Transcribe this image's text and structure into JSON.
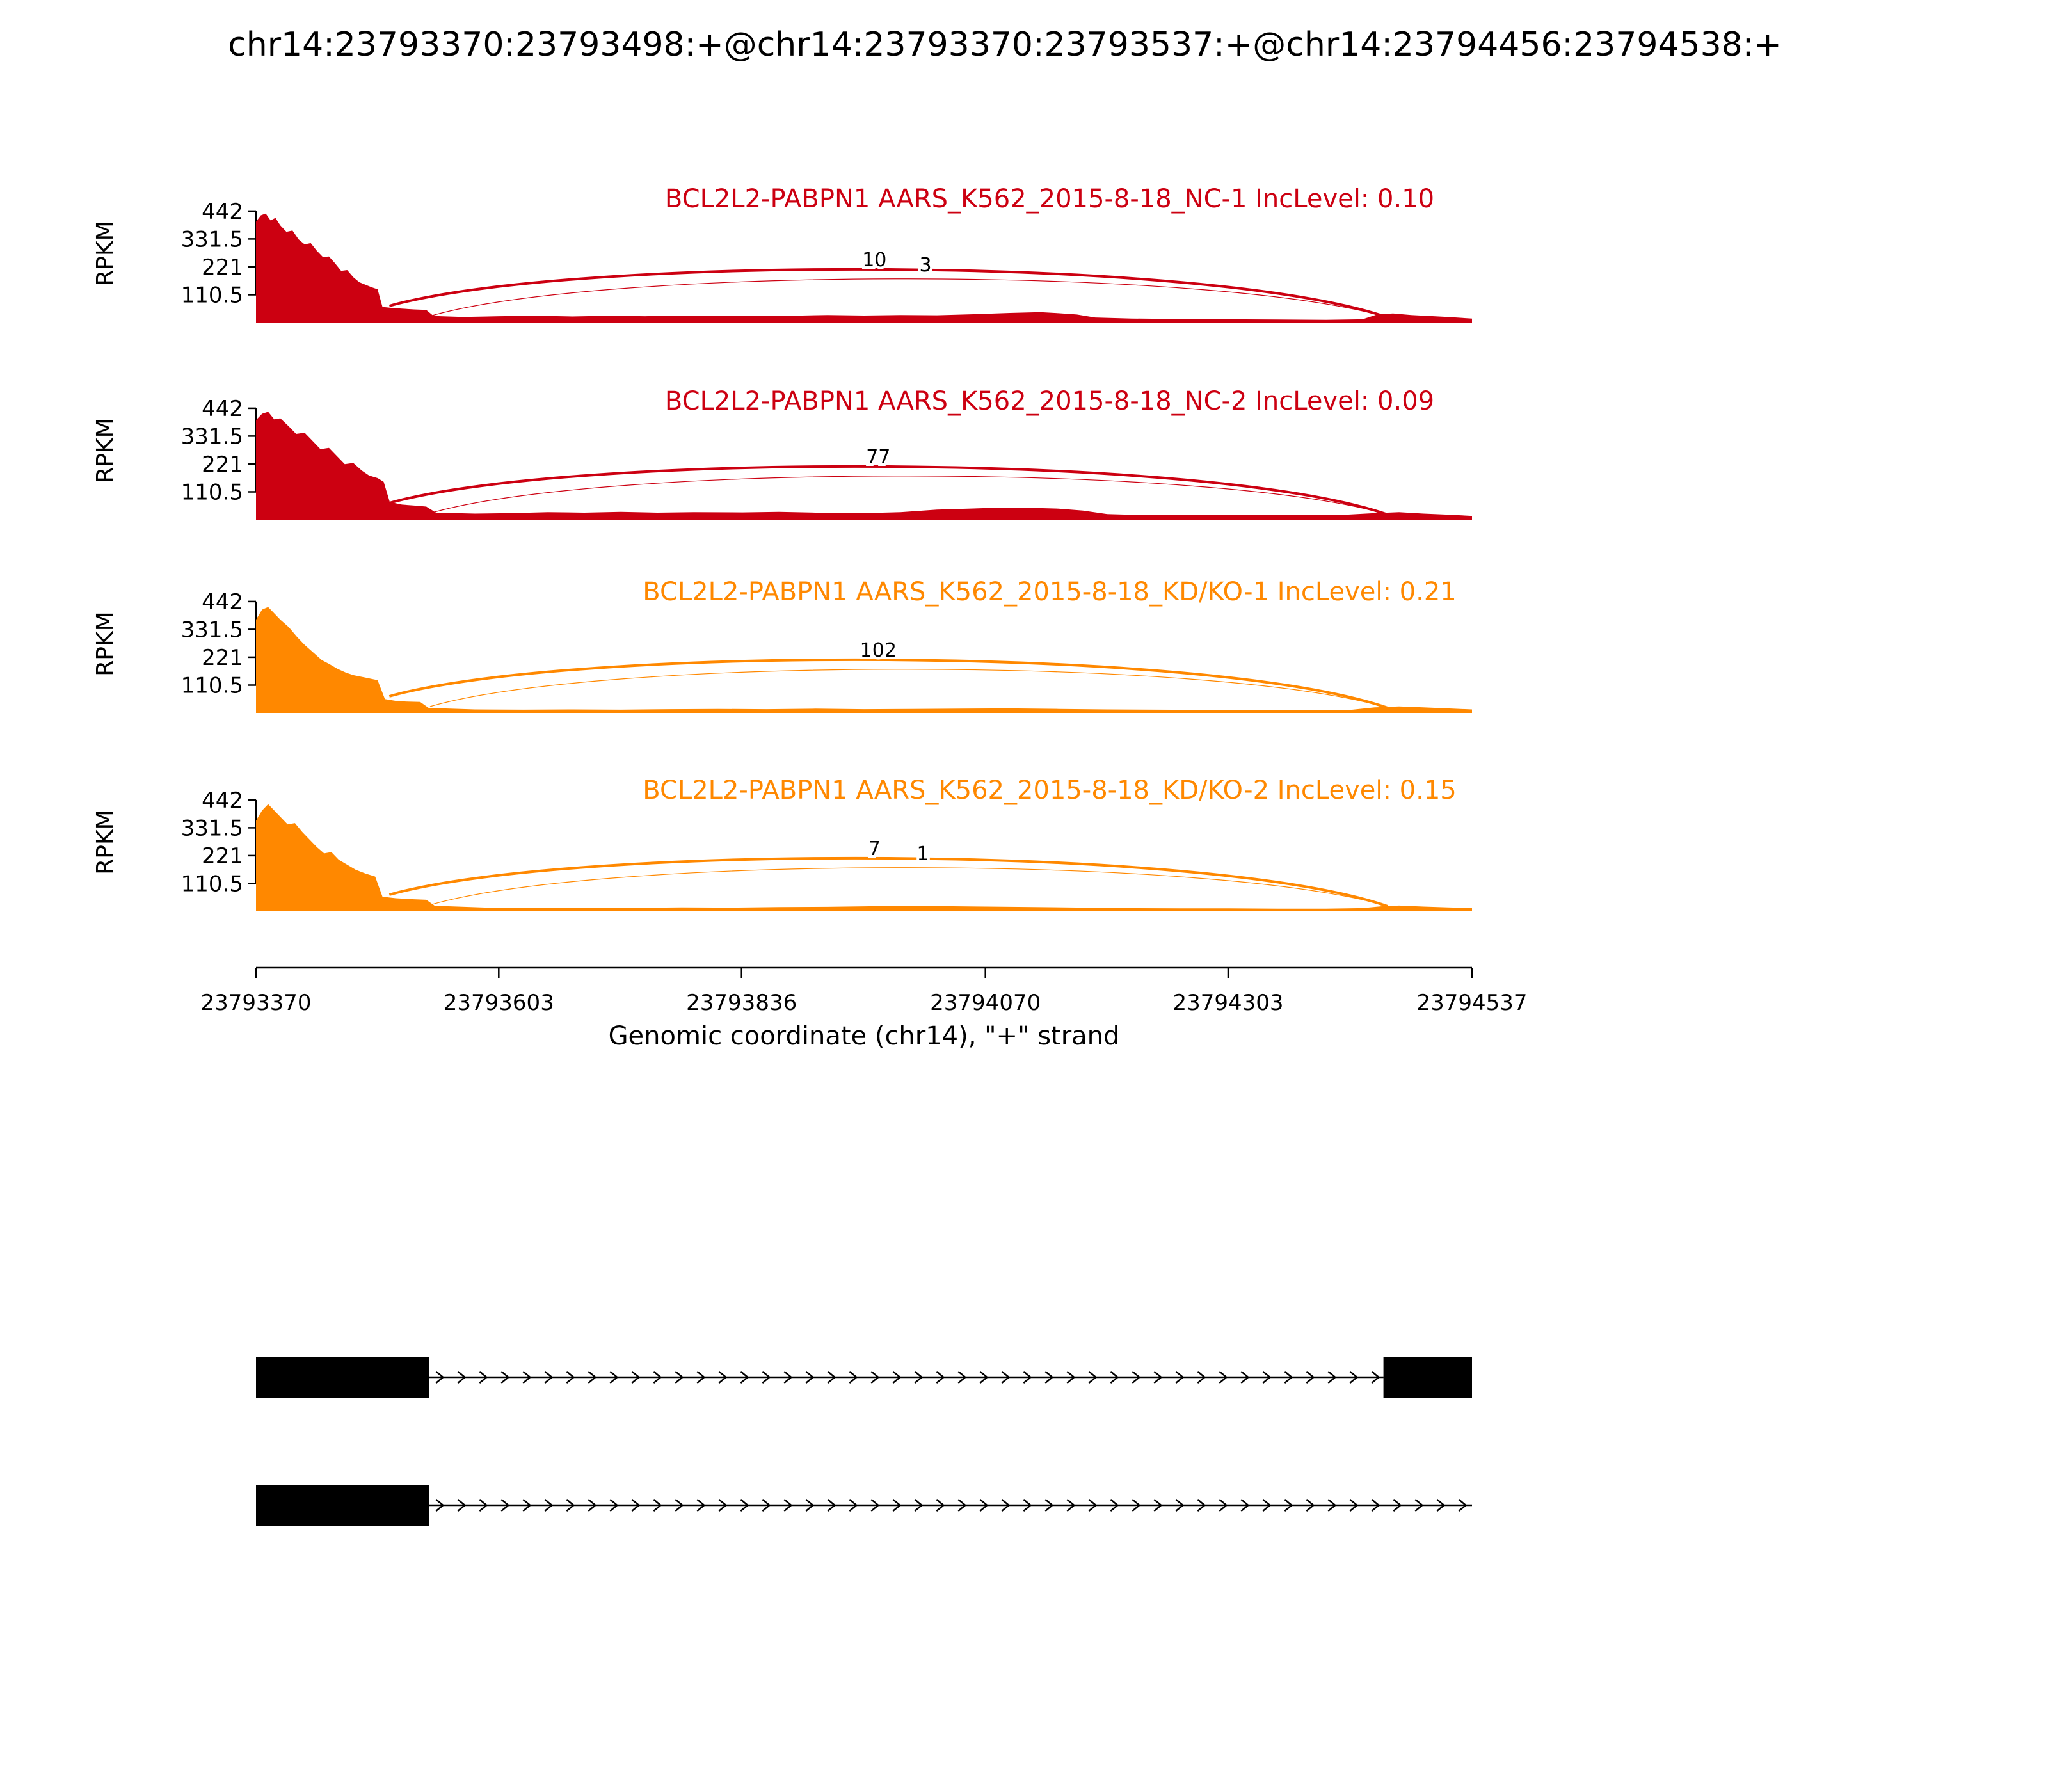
{
  "title": "chr14:23793370:23793498:+@chr14:23793370:23793537:+@chr14:23794456:23794538:+",
  "colors": {
    "nc_red": "#CC0011",
    "kdko_orange": "#FF8800",
    "exon_black": "#000000"
  },
  "chart_data": {
    "type": "sashimi",
    "title": "chr14:23793370:23793498:+@chr14:23793370:23793537:+@chr14:23794456:23794538:+",
    "xlabel": "Genomic coordinate (chr14), \"+\" strand",
    "ylabel": "RPKM",
    "x_range": [
      23793370,
      23794537
    ],
    "x_ticks": [
      23793370,
      23793603,
      23793836,
      23794070,
      23794303,
      23794537
    ],
    "y_ticks": [
      110.5,
      221,
      331.5,
      442
    ],
    "y_max": 442,
    "grid": false,
    "tracks": [
      {
        "title": "BCL2L2-PABPN1 AARS_K562_2015-8-18_NC-1 IncLevel: 0.10",
        "sample": "AARS_K562_2015-8-18_NC-1",
        "gene": "BCL2L2-PABPN1",
        "inc_level": "0.10",
        "color": "#CC0011",
        "junctions": [
          {
            "count": "10",
            "from": 23793498,
            "to": 23794456,
            "style": "thick",
            "label_dx": -22
          },
          {
            "count": "3",
            "from": 23793537,
            "to": 23794456,
            "style": "thin",
            "label_dx": 26
          }
        ],
        "coverage": [
          [
            0,
            400
          ],
          [
            0.004,
            425
          ],
          [
            0.008,
            432
          ],
          [
            0.012,
            405
          ],
          [
            0.016,
            415
          ],
          [
            0.02,
            385
          ],
          [
            0.025,
            360
          ],
          [
            0.03,
            365
          ],
          [
            0.035,
            330
          ],
          [
            0.04,
            310
          ],
          [
            0.045,
            315
          ],
          [
            0.05,
            285
          ],
          [
            0.055,
            260
          ],
          [
            0.06,
            262
          ],
          [
            0.065,
            235
          ],
          [
            0.07,
            205
          ],
          [
            0.075,
            208
          ],
          [
            0.08,
            180
          ],
          [
            0.085,
            160
          ],
          [
            0.09,
            150
          ],
          [
            0.095,
            140
          ],
          [
            0.1,
            132
          ],
          [
            0.104,
            62
          ],
          [
            0.112,
            58
          ],
          [
            0.12,
            55
          ],
          [
            0.13,
            52
          ],
          [
            0.14,
            50
          ],
          [
            0.146,
            26
          ],
          [
            0.17,
            22
          ],
          [
            0.2,
            25
          ],
          [
            0.23,
            27
          ],
          [
            0.26,
            24
          ],
          [
            0.29,
            27
          ],
          [
            0.32,
            25
          ],
          [
            0.35,
            28
          ],
          [
            0.38,
            26
          ],
          [
            0.41,
            28
          ],
          [
            0.44,
            27
          ],
          [
            0.47,
            30
          ],
          [
            0.5,
            28
          ],
          [
            0.53,
            30
          ],
          [
            0.56,
            29
          ],
          [
            0.59,
            33
          ],
          [
            0.62,
            38
          ],
          [
            0.645,
            41
          ],
          [
            0.66,
            37
          ],
          [
            0.675,
            32
          ],
          [
            0.69,
            20
          ],
          [
            0.72,
            16
          ],
          [
            0.76,
            14
          ],
          [
            0.8,
            13
          ],
          [
            0.84,
            12
          ],
          [
            0.88,
            11
          ],
          [
            0.91,
            13
          ],
          [
            0.922,
            32
          ],
          [
            0.935,
            36
          ],
          [
            0.95,
            30
          ],
          [
            0.965,
            26
          ],
          [
            0.98,
            22
          ],
          [
            1,
            16
          ]
        ]
      },
      {
        "title": "BCL2L2-PABPN1 AARS_K562_2015-8-18_NC-2 IncLevel: 0.09",
        "sample": "AARS_K562_2015-8-18_NC-2",
        "gene": "BCL2L2-PABPN1",
        "inc_level": "0.09",
        "color": "#CC0011",
        "junctions": [
          {
            "count": "77",
            "from": 23793498,
            "to": 23794456,
            "style": "thick",
            "label_dx": -16
          },
          {
            "count": "",
            "from": 23793537,
            "to": 23794456,
            "style": "thin",
            "label_dx": 0
          }
        ],
        "coverage": [
          [
            0,
            395
          ],
          [
            0.005,
            420
          ],
          [
            0.01,
            428
          ],
          [
            0.015,
            398
          ],
          [
            0.02,
            402
          ],
          [
            0.027,
            370
          ],
          [
            0.033,
            340
          ],
          [
            0.04,
            345
          ],
          [
            0.047,
            310
          ],
          [
            0.053,
            280
          ],
          [
            0.06,
            285
          ],
          [
            0.067,
            250
          ],
          [
            0.073,
            220
          ],
          [
            0.08,
            225
          ],
          [
            0.087,
            195
          ],
          [
            0.093,
            175
          ],
          [
            0.1,
            165
          ],
          [
            0.105,
            150
          ],
          [
            0.11,
            70
          ],
          [
            0.12,
            60
          ],
          [
            0.13,
            56
          ],
          [
            0.14,
            52
          ],
          [
            0.148,
            28
          ],
          [
            0.18,
            24
          ],
          [
            0.21,
            26
          ],
          [
            0.24,
            30
          ],
          [
            0.27,
            28
          ],
          [
            0.3,
            31
          ],
          [
            0.33,
            28
          ],
          [
            0.36,
            30
          ],
          [
            0.4,
            29
          ],
          [
            0.43,
            31
          ],
          [
            0.46,
            28
          ],
          [
            0.5,
            26
          ],
          [
            0.53,
            30
          ],
          [
            0.56,
            40
          ],
          [
            0.6,
            46
          ],
          [
            0.63,
            48
          ],
          [
            0.66,
            44
          ],
          [
            0.68,
            36
          ],
          [
            0.7,
            22
          ],
          [
            0.73,
            18
          ],
          [
            0.77,
            20
          ],
          [
            0.81,
            18
          ],
          [
            0.85,
            19
          ],
          [
            0.89,
            18
          ],
          [
            0.92,
            26
          ],
          [
            0.94,
            30
          ],
          [
            0.96,
            24
          ],
          [
            0.98,
            20
          ],
          [
            1,
            15
          ]
        ]
      },
      {
        "title": "BCL2L2-PABPN1 AARS_K562_2015-8-18_KD/KO-1 IncLevel: 0.21",
        "sample": "AARS_K562_2015-8-18_KD/KO-1",
        "gene": "BCL2L2-PABPN1",
        "inc_level": "0.21",
        "color": "#FF8800",
        "junctions": [
          {
            "count": "102",
            "from": 23793498,
            "to": 23794456,
            "style": "thick",
            "label_dx": -16
          },
          {
            "count": "",
            "from": 23793537,
            "to": 23794456,
            "style": "thin",
            "label_dx": 0
          }
        ],
        "coverage": [
          [
            0,
            370
          ],
          [
            0.005,
            410
          ],
          [
            0.01,
            420
          ],
          [
            0.015,
            395
          ],
          [
            0.02,
            370
          ],
          [
            0.027,
            340
          ],
          [
            0.034,
            300
          ],
          [
            0.04,
            270
          ],
          [
            0.047,
            240
          ],
          [
            0.054,
            210
          ],
          [
            0.06,
            195
          ],
          [
            0.067,
            175
          ],
          [
            0.074,
            160
          ],
          [
            0.08,
            150
          ],
          [
            0.09,
            140
          ],
          [
            0.1,
            130
          ],
          [
            0.106,
            55
          ],
          [
            0.115,
            48
          ],
          [
            0.125,
            45
          ],
          [
            0.135,
            44
          ],
          [
            0.142,
            20
          ],
          [
            0.18,
            14
          ],
          [
            0.22,
            13
          ],
          [
            0.26,
            14
          ],
          [
            0.3,
            13
          ],
          [
            0.34,
            15
          ],
          [
            0.38,
            16
          ],
          [
            0.42,
            15
          ],
          [
            0.46,
            17
          ],
          [
            0.5,
            15
          ],
          [
            0.54,
            16
          ],
          [
            0.58,
            17
          ],
          [
            0.62,
            18
          ],
          [
            0.66,
            16
          ],
          [
            0.7,
            14
          ],
          [
            0.74,
            13
          ],
          [
            0.78,
            12
          ],
          [
            0.82,
            12
          ],
          [
            0.86,
            11
          ],
          [
            0.9,
            12
          ],
          [
            0.92,
            22
          ],
          [
            0.94,
            26
          ],
          [
            0.96,
            22
          ],
          [
            0.98,
            18
          ],
          [
            1,
            14
          ]
        ]
      },
      {
        "title": "BCL2L2-PABPN1 AARS_K562_2015-8-18_KD/KO-2 IncLevel: 0.15",
        "sample": "AARS_K562_2015-8-18_KD/KO-2",
        "gene": "BCL2L2-PABPN1",
        "inc_level": "0.15",
        "color": "#FF8800",
        "junctions": [
          {
            "count": "7",
            "from": 23793498,
            "to": 23794456,
            "style": "thick",
            "label_dx": -22
          },
          {
            "count": "1",
            "from": 23793537,
            "to": 23794456,
            "style": "thin",
            "label_dx": 22
          }
        ],
        "coverage": [
          [
            0,
            360
          ],
          [
            0.005,
            400
          ],
          [
            0.01,
            425
          ],
          [
            0.015,
            400
          ],
          [
            0.02,
            375
          ],
          [
            0.026,
            345
          ],
          [
            0.032,
            350
          ],
          [
            0.038,
            315
          ],
          [
            0.044,
            285
          ],
          [
            0.05,
            255
          ],
          [
            0.056,
            230
          ],
          [
            0.062,
            235
          ],
          [
            0.068,
            205
          ],
          [
            0.075,
            185
          ],
          [
            0.082,
            165
          ],
          [
            0.09,
            150
          ],
          [
            0.098,
            138
          ],
          [
            0.104,
            58
          ],
          [
            0.115,
            52
          ],
          [
            0.13,
            48
          ],
          [
            0.14,
            46
          ],
          [
            0.147,
            22
          ],
          [
            0.19,
            15
          ],
          [
            0.23,
            14
          ],
          [
            0.27,
            15
          ],
          [
            0.31,
            14
          ],
          [
            0.35,
            16
          ],
          [
            0.39,
            15
          ],
          [
            0.43,
            17
          ],
          [
            0.47,
            18
          ],
          [
            0.5,
            20
          ],
          [
            0.53,
            22
          ],
          [
            0.56,
            21
          ],
          [
            0.6,
            19
          ],
          [
            0.64,
            17
          ],
          [
            0.68,
            15
          ],
          [
            0.72,
            13
          ],
          [
            0.76,
            12
          ],
          [
            0.8,
            12
          ],
          [
            0.84,
            11
          ],
          [
            0.88,
            11
          ],
          [
            0.91,
            13
          ],
          [
            0.925,
            20
          ],
          [
            0.94,
            23
          ],
          [
            0.96,
            19
          ],
          [
            0.98,
            16
          ],
          [
            1,
            13
          ]
        ]
      }
    ],
    "isoforms": [
      {
        "exons": [
          [
            23793370,
            23793536
          ],
          [
            23794452,
            23794537
          ]
        ],
        "intron": [
          23793536,
          23794452
        ],
        "arrow_to_end": false
      },
      {
        "exons": [
          [
            23793370,
            23793536
          ]
        ],
        "intron": [
          23793536,
          23794537
        ],
        "arrow_to_end": true
      }
    ]
  }
}
